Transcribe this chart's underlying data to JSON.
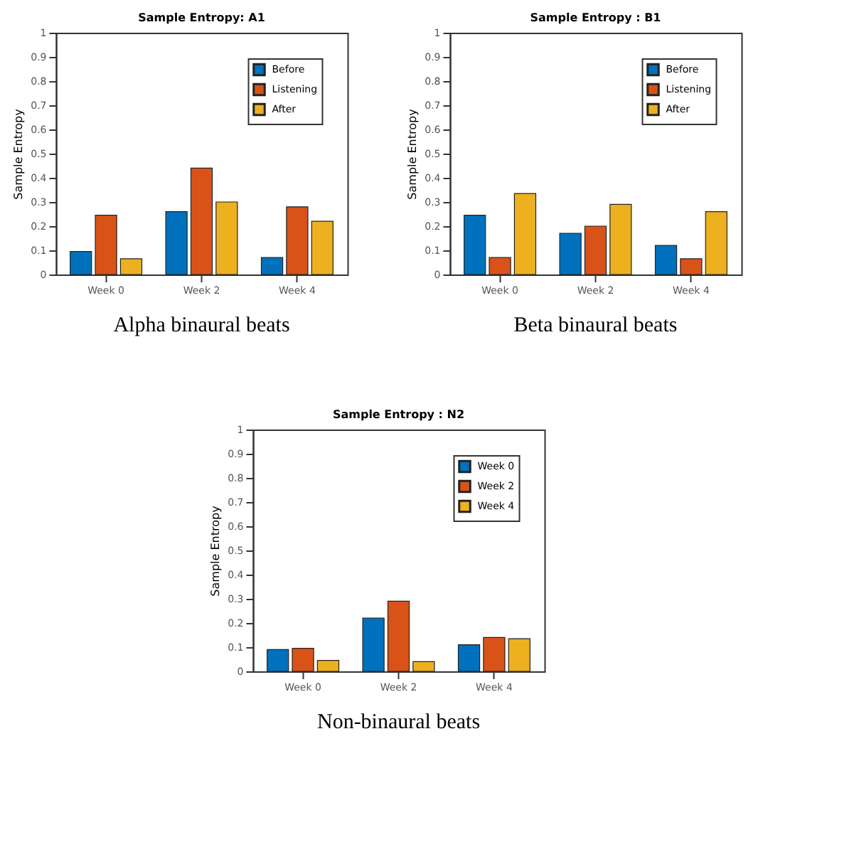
{
  "chart_data": [
    {
      "type": "bar",
      "title": "Sample Entropy: A1",
      "ylabel": "Sample Entropy",
      "categories": [
        "Week 0",
        "Week 2",
        "Week 4"
      ],
      "series": [
        {
          "name": "Before",
          "color": "#0072bd",
          "values": [
            0.095,
            0.26,
            0.07
          ]
        },
        {
          "name": "Listening",
          "color": "#d95319",
          "values": [
            0.245,
            0.44,
            0.28
          ]
        },
        {
          "name": "After",
          "color": "#edb120",
          "values": [
            0.065,
            0.3,
            0.22
          ]
        }
      ],
      "ylim": [
        0,
        1
      ],
      "yticks": [
        0,
        0.1,
        0.2,
        0.3,
        0.4,
        0.5,
        0.6,
        0.7,
        0.8,
        0.9,
        1
      ],
      "grid": false,
      "legend": "top right",
      "annotations": [
        "Alpha binaural beats"
      ]
    },
    {
      "type": "bar",
      "title": "Sample Entropy : B1",
      "ylabel": "Sample Entropy",
      "categories": [
        "Week 0",
        "Week 2",
        "Week 4"
      ],
      "series": [
        {
          "name": "Before",
          "color": "#0072bd",
          "values": [
            0.245,
            0.17,
            0.12
          ]
        },
        {
          "name": "Listening",
          "color": "#d95319",
          "values": [
            0.07,
            0.2,
            0.065
          ]
        },
        {
          "name": "After",
          "color": "#edb120",
          "values": [
            0.335,
            0.29,
            0.26
          ]
        }
      ],
      "ylim": [
        0,
        1
      ],
      "yticks": [
        0,
        0.1,
        0.2,
        0.3,
        0.4,
        0.5,
        0.6,
        0.7,
        0.8,
        0.9,
        1
      ],
      "grid": false,
      "legend": "top right",
      "annotations": [
        "Beta binaural beats"
      ]
    },
    {
      "type": "bar",
      "title": "Sample Entropy : N2",
      "ylabel": "Sample Entropy",
      "categories": [
        "Week 0",
        "Week 2",
        "Week 4"
      ],
      "series": [
        {
          "name": "Week 0",
          "color": "#0072bd",
          "values": [
            0.09,
            0.22,
            0.11
          ]
        },
        {
          "name": "Week 2",
          "color": "#d95319",
          "values": [
            0.095,
            0.29,
            0.14
          ]
        },
        {
          "name": "Week 4",
          "color": "#edb120",
          "values": [
            0.045,
            0.04,
            0.135
          ]
        }
      ],
      "ylim": [
        0,
        1
      ],
      "yticks": [
        0,
        0.1,
        0.2,
        0.3,
        0.4,
        0.5,
        0.6,
        0.7,
        0.8,
        0.9,
        1
      ],
      "grid": false,
      "legend": "top right",
      "annotations": [
        "Non-binaural beats"
      ]
    }
  ]
}
